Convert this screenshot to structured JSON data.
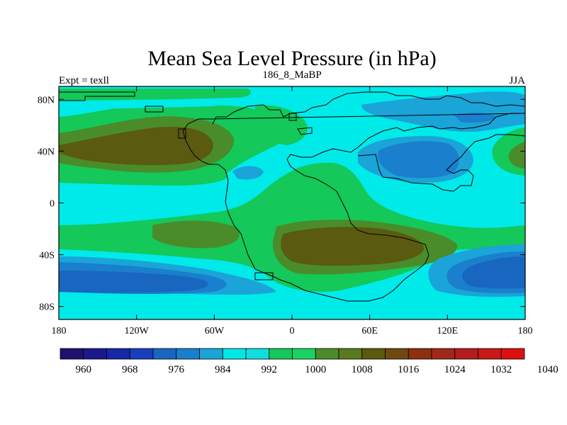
{
  "chart_data": {
    "type": "heatmap",
    "title": "Mean Sea Level Pressure (in hPa)",
    "left_subtitle": "Expt = texll",
    "center_subtitle": "186_8_MaBP",
    "right_subtitle": "JJA",
    "xlim": [
      -180,
      180
    ],
    "ylim": [
      -90,
      90
    ],
    "x_ticks": [
      {
        "value": -180,
        "label": "180"
      },
      {
        "value": -120,
        "label": "120W"
      },
      {
        "value": -60,
        "label": "60W"
      },
      {
        "value": 0,
        "label": "0"
      },
      {
        "value": 60,
        "label": "60E"
      },
      {
        "value": 120,
        "label": "120E"
      },
      {
        "value": 180,
        "label": "180"
      }
    ],
    "y_ticks": [
      {
        "value": 80,
        "label": "80N"
      },
      {
        "value": 40,
        "label": "40N"
      },
      {
        "value": 0,
        "label": "0"
      },
      {
        "value": -40,
        "label": "40S"
      },
      {
        "value": -80,
        "label": "80S"
      }
    ],
    "colorbar": {
      "colors": [
        "#1f1170",
        "#1a1a8c",
        "#1628a8",
        "#1a3fbe",
        "#1866c0",
        "#1a7fcc",
        "#1aa4d8",
        "#00e6e6",
        "#10dede",
        "#14c85a",
        "#1ad264",
        "#4a8c2a",
        "#5a7a20",
        "#5a5a10",
        "#6e4a10",
        "#8c3010",
        "#a02818",
        "#b41c1c",
        "#c81818",
        "#dc1010"
      ],
      "labels": [
        {
          "index": 1,
          "label": "960"
        },
        {
          "index": 3,
          "label": "968"
        },
        {
          "index": 5,
          "label": "976"
        },
        {
          "index": 7,
          "label": "984"
        },
        {
          "index": 9,
          "label": "992"
        },
        {
          "index": 11,
          "label": "1000"
        },
        {
          "index": 13,
          "label": "1008"
        },
        {
          "index": 15,
          "label": "1016"
        },
        {
          "index": 17,
          "label": "1024"
        },
        {
          "index": 19,
          "label": "1032"
        },
        {
          "index": 21,
          "label": "1040"
        }
      ]
    },
    "field_colors": {
      "cyan": "#00eaea",
      "light_green": "#14c85a",
      "mid_green": "#4a8c2a",
      "olive": "#5a5a10",
      "sky_blue": "#1aa4d8",
      "blue": "#1a7fcc",
      "deep_blue": "#1866c0"
    }
  }
}
